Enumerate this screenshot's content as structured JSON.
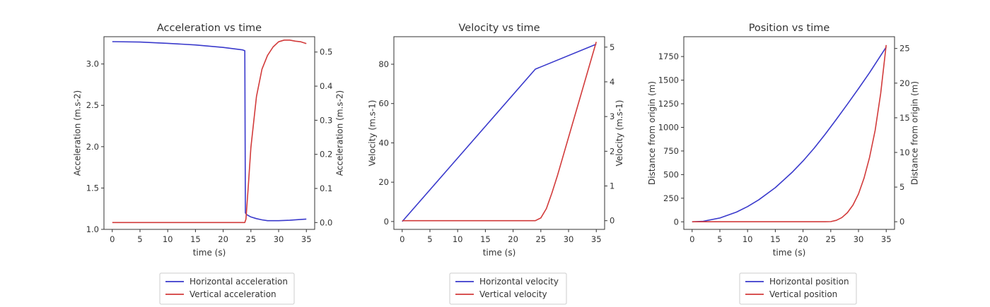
{
  "colors": {
    "horizontal": "#3a3acc",
    "vertical": "#d23b3b",
    "axes": "#333333"
  },
  "chart_data": [
    {
      "type": "line",
      "title": "Acceleration vs time",
      "xlabel": "time (s)",
      "ylabel": "Acceleration (m.s-2)",
      "ylabel_right": "Acceleration (m.s-2)",
      "xlim": [
        -1.5,
        36.5
      ],
      "ylim": [
        1.0,
        3.33
      ],
      "ylim_right": [
        -0.02,
        0.545
      ],
      "xticks": [
        0,
        5,
        10,
        15,
        20,
        25,
        30,
        35
      ],
      "yticks": [
        1.0,
        1.5,
        2.0,
        2.5,
        3.0
      ],
      "ytick_labels": [
        "1.0",
        "1.5",
        "2.0",
        "2.5",
        "3.0"
      ],
      "yticks_right": [
        0.0,
        0.1,
        0.2,
        0.3,
        0.4,
        0.5
      ],
      "ytick_labels_right": [
        "0.0",
        "0.1",
        "0.2",
        "0.3",
        "0.4",
        "0.5"
      ],
      "legend_position": "below",
      "series": [
        {
          "name": "Horizontal acceleration",
          "axis": "left",
          "color": "#3a3acc",
          "x": [
            0,
            5,
            10,
            15,
            20,
            23.5,
            23.9,
            24.0,
            24.2,
            25,
            26,
            27,
            28,
            30,
            32,
            34,
            35
          ],
          "y": [
            3.27,
            3.265,
            3.25,
            3.23,
            3.2,
            3.17,
            3.16,
            1.2,
            1.18,
            1.15,
            1.13,
            1.115,
            1.105,
            1.105,
            1.11,
            1.12,
            1.125
          ]
        },
        {
          "name": "Vertical acceleration",
          "axis": "right",
          "color": "#d23b3b",
          "x": [
            0,
            5,
            10,
            15,
            20,
            23.9,
            24.1,
            24.5,
            25,
            26,
            27,
            28,
            29,
            30,
            31,
            32,
            33,
            34,
            35
          ],
          "y": [
            0.0,
            0.0,
            0.0,
            0.0,
            0.0,
            0.0,
            0.01,
            0.1,
            0.22,
            0.37,
            0.45,
            0.49,
            0.515,
            0.53,
            0.535,
            0.535,
            0.532,
            0.53,
            0.525
          ]
        }
      ]
    },
    {
      "type": "line",
      "title": "Velocity vs time",
      "xlabel": "time (s)",
      "ylabel": "Velocity (m.s-1)",
      "ylabel_right": "Velocity (m.s-1)",
      "xlim": [
        -1.5,
        36.5
      ],
      "ylim": [
        -4,
        94
      ],
      "ylim_right": [
        -0.25,
        5.3
      ],
      "xticks": [
        0,
        5,
        10,
        15,
        20,
        25,
        30,
        35
      ],
      "yticks": [
        0,
        20,
        40,
        60,
        80
      ],
      "ytick_labels": [
        "0",
        "20",
        "40",
        "60",
        "80"
      ],
      "yticks_right": [
        0,
        1,
        2,
        3,
        4,
        5
      ],
      "ytick_labels_right": [
        "0",
        "1",
        "2",
        "3",
        "4",
        "5"
      ],
      "legend_position": "below",
      "series": [
        {
          "name": "Horizontal velocity",
          "axis": "left",
          "color": "#3a3acc",
          "x": [
            0,
            24,
            35
          ],
          "y": [
            0,
            77.5,
            90.2
          ]
        },
        {
          "name": "Vertical velocity",
          "axis": "right",
          "color": "#d23b3b",
          "x": [
            0,
            24,
            25,
            26,
            27,
            28,
            30,
            32,
            35
          ],
          "y": [
            0,
            0,
            0.08,
            0.35,
            0.8,
            1.3,
            2.4,
            3.5,
            5.15
          ]
        }
      ]
    },
    {
      "type": "line",
      "title": "Position vs time",
      "xlabel": "time (s)",
      "ylabel": "Distance from origin (m)",
      "ylabel_right": "Distance from origin (m)",
      "xlim": [
        -1.5,
        36.5
      ],
      "ylim": [
        -80,
        1960
      ],
      "ylim_right": [
        -1.1,
        26.7
      ],
      "xticks": [
        0,
        5,
        10,
        15,
        20,
        25,
        30,
        35
      ],
      "yticks": [
        0,
        250,
        500,
        750,
        1000,
        1250,
        1500,
        1750
      ],
      "ytick_labels": [
        "0",
        "250",
        "500",
        "750",
        "1000",
        "1250",
        "1500",
        "1750"
      ],
      "yticks_right": [
        0,
        5,
        10,
        15,
        20,
        25
      ],
      "ytick_labels_right": [
        "0",
        "5",
        "10",
        "15",
        "20",
        "25"
      ],
      "legend_position": "below",
      "series": [
        {
          "name": "Horizontal position",
          "axis": "left",
          "color": "#3a3acc",
          "x": [
            0,
            2,
            5,
            8,
            10,
            12,
            15,
            18,
            20,
            22,
            24,
            26,
            28,
            30,
            32,
            35
          ],
          "y": [
            0,
            6,
            40,
            103,
            161,
            232,
            362,
            522,
            644,
            779,
            928,
            1085,
            1245,
            1410,
            1580,
            1850
          ]
        },
        {
          "name": "Vertical position",
          "axis": "right",
          "color": "#d23b3b",
          "x": [
            0,
            24,
            25,
            26,
            27,
            28,
            29,
            30,
            31,
            32,
            33,
            34,
            35
          ],
          "y": [
            0,
            0,
            0.02,
            0.2,
            0.6,
            1.3,
            2.4,
            4.0,
            6.3,
            9.3,
            13.2,
            18.5,
            25.5
          ]
        }
      ]
    }
  ]
}
